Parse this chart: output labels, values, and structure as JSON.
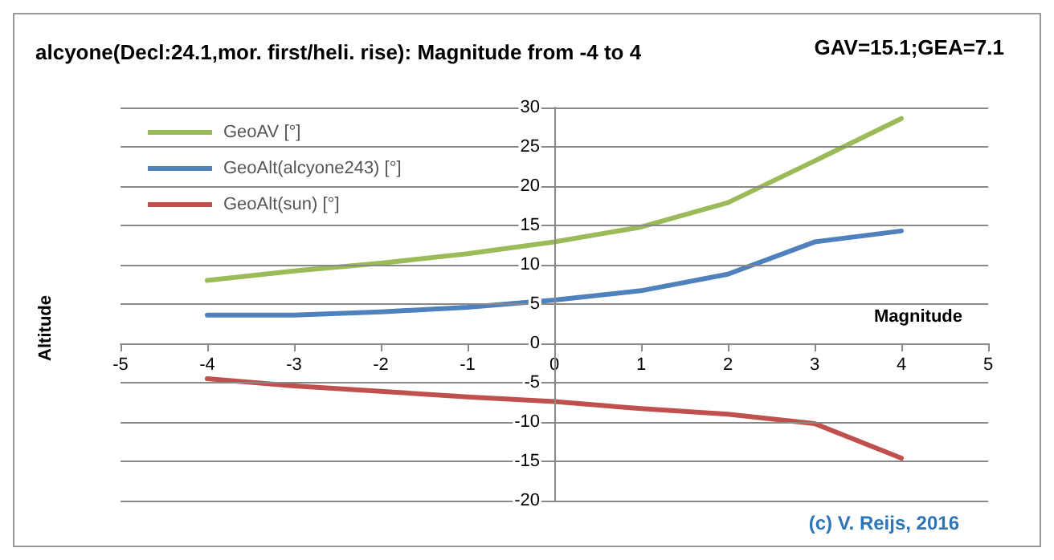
{
  "chart_data": {
    "type": "line",
    "title": "alcyone(Decl:24.1,mor. first/heli. rise): Magnitude from -4 to 4",
    "xlabel": "Magnitude",
    "ylabel": "Altitude",
    "annotations": [
      "GAV=15.1;GEA=7.1",
      "(c) V. Reijs, 2016"
    ],
    "x": [
      -4,
      -3,
      -2,
      -1,
      0,
      1,
      2,
      3,
      4
    ],
    "series": [
      {
        "name": "GeoAV [°]",
        "color": "#9bbb59",
        "values": [
          8.0,
          9.2,
          10.2,
          11.4,
          12.9,
          14.8,
          17.9,
          23.2,
          28.6
        ]
      },
      {
        "name": "GeoAlt(alcyone243) [°]",
        "color": "#4f81bd",
        "values": [
          3.6,
          3.6,
          4.0,
          4.6,
          5.5,
          6.7,
          8.8,
          12.9,
          14.3
        ]
      },
      {
        "name": "GeoAlt(sun) [°]",
        "color": "#c0504d",
        "values": [
          -4.5,
          -5.4,
          -6.1,
          -6.8,
          -7.4,
          -8.3,
          -9.0,
          -10.2,
          -14.6
        ]
      }
    ],
    "xlim": [
      -5,
      5
    ],
    "xticks": [
      -5,
      -4,
      -3,
      -2,
      -1,
      0,
      1,
      2,
      3,
      4,
      5
    ],
    "ylim": [
      -20,
      30
    ],
    "yticks": [
      -20,
      -15,
      -10,
      -5,
      0,
      5,
      10,
      15,
      20,
      25,
      30
    ],
    "grid": "y",
    "legend": "top left",
    "marker": "none",
    "line_style": "solid"
  }
}
